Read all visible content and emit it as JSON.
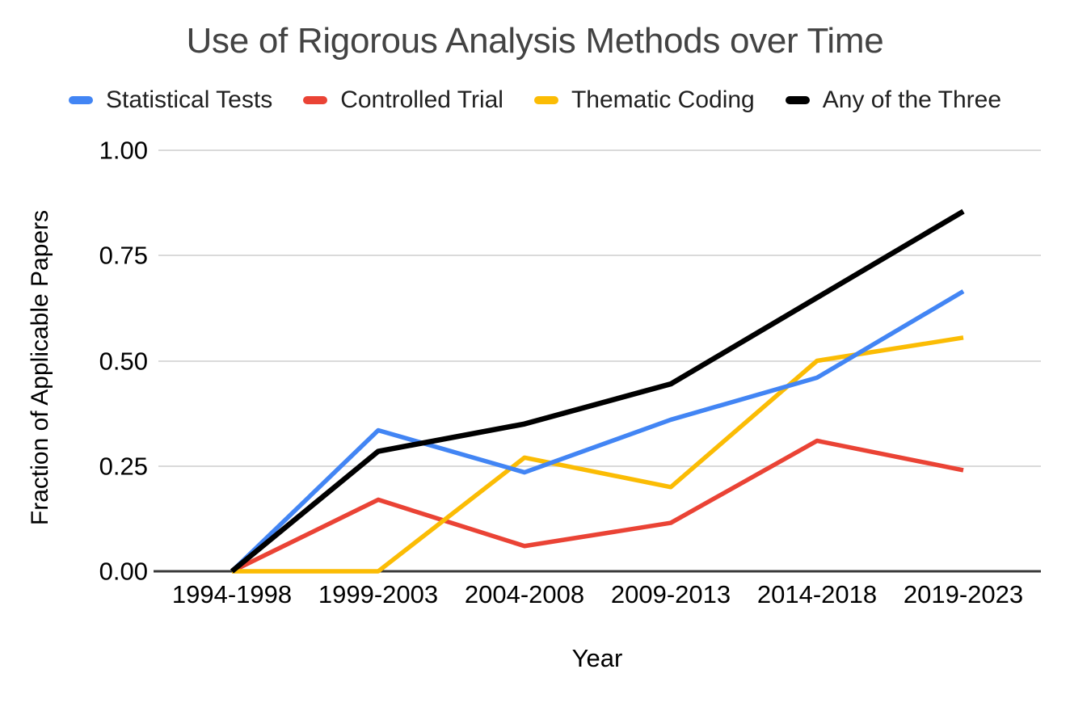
{
  "chart_data": {
    "type": "line",
    "title": "Use of Rigorous Analysis Methods over Time",
    "xlabel": "Year",
    "ylabel": "Fraction of Applicable Papers",
    "categories": [
      "1994-1998",
      "1999-2003",
      "2004-2008",
      "2009-2013",
      "2014-2018",
      "2019-2023"
    ],
    "series": [
      {
        "name": "Statistical Tests",
        "color": "#4285F4",
        "values": [
          0.0,
          0.335,
          0.235,
          0.36,
          0.46,
          0.665
        ]
      },
      {
        "name": "Controlled Trial",
        "color": "#EA4335",
        "values": [
          0.0,
          0.17,
          0.06,
          0.115,
          0.31,
          0.24
        ]
      },
      {
        "name": "Thematic Coding",
        "color": "#FBBC04",
        "values": [
          0.0,
          0.0,
          0.27,
          0.2,
          0.5,
          0.555
        ]
      },
      {
        "name": "Any of the Three",
        "color": "#000000",
        "values": [
          0.0,
          0.285,
          0.35,
          0.445,
          0.65,
          0.855
        ]
      }
    ],
    "ylim": [
      0,
      1
    ],
    "yticks": [
      {
        "value": 0.0,
        "label": "0.00"
      },
      {
        "value": 0.25,
        "label": "0.25"
      },
      {
        "value": 0.5,
        "label": "0.50"
      },
      {
        "value": 0.75,
        "label": "0.75"
      },
      {
        "value": 1.0,
        "label": "1.00"
      }
    ],
    "grid": true,
    "legend_position": "top",
    "colors": {
      "grid": "#dadada",
      "axis_line": "#3a3a3a",
      "title_text": "#434343",
      "label_text": "#000000",
      "background": "#ffffff"
    }
  }
}
